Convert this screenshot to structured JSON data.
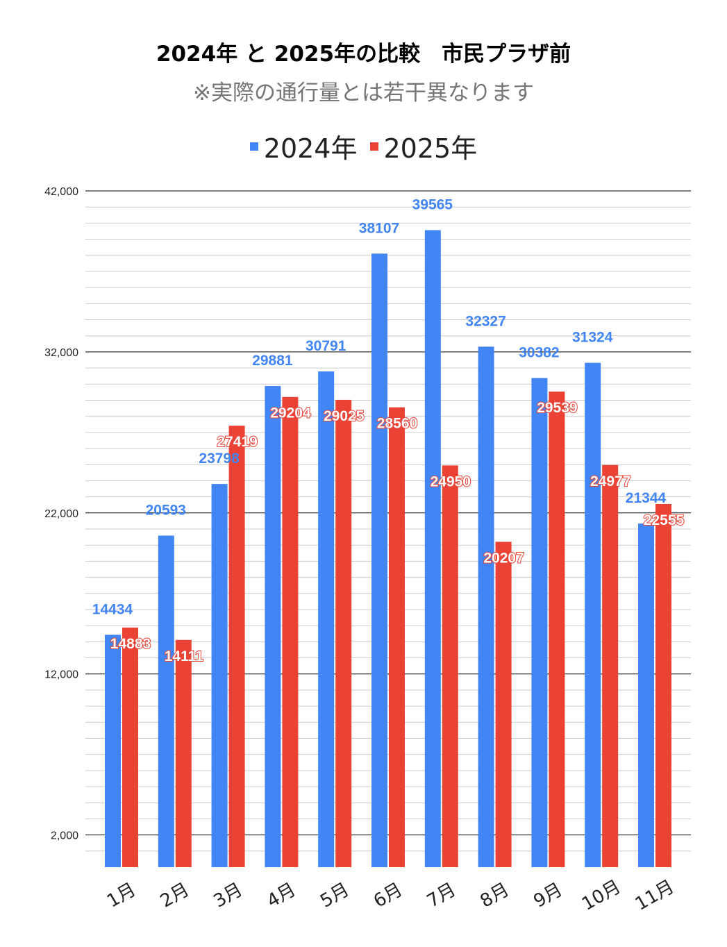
{
  "chart_data": {
    "type": "bar",
    "title": "2024年 と 2025年の比較　市民プラザ前",
    "subtitle": "※実際の通行量とは若干異なります",
    "categories": [
      "1月",
      "2月",
      "3月",
      "4月",
      "5月",
      "6月",
      "7月",
      "8月",
      "9月",
      "10月",
      "11月"
    ],
    "series": [
      {
        "name": "2024年",
        "color": "#4285f4",
        "values": [
          14434,
          20593,
          23798,
          29881,
          30791,
          38107,
          39565,
          32327,
          30382,
          31324,
          21344
        ]
      },
      {
        "name": "2025年",
        "color": "#ea4335",
        "values": [
          14883,
          14111,
          27419,
          29204,
          29025,
          28560,
          24950,
          20207,
          29539,
          24977,
          22555
        ]
      }
    ],
    "ylim": [
      0,
      42000
    ],
    "yticks": [
      2000,
      12000,
      22000,
      32000,
      42000
    ],
    "ytick_labels": [
      "2,000",
      "12,000",
      "22,000",
      "32,000",
      "42,000"
    ],
    "minor_grid_step": 1000,
    "grid": true,
    "legend_position": "top",
    "xlabel": "",
    "ylabel": ""
  }
}
